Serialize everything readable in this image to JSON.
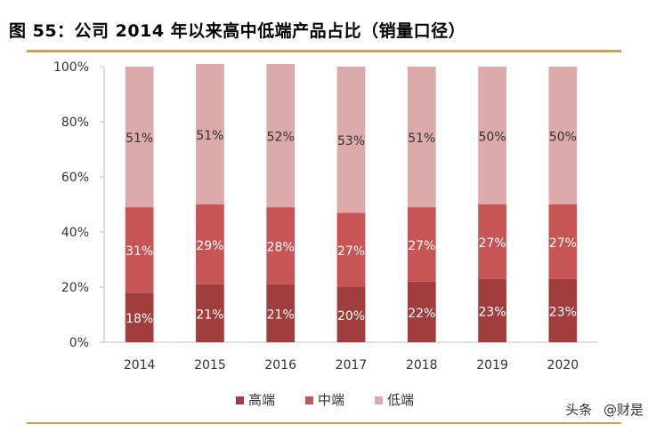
{
  "title": "图 55：公司 2014 年以来高中低端产品占比（销量口径）",
  "watermark": {
    "brand": "头条",
    "handle": "@财是"
  },
  "chart_data": {
    "type": "bar",
    "stacked": true,
    "categories": [
      "2014",
      "2015",
      "2016",
      "2017",
      "2018",
      "2019",
      "2020"
    ],
    "series": [
      {
        "name": "高端",
        "values": [
          18,
          21,
          21,
          20,
          22,
          23,
          23
        ],
        "labels": [
          "18%",
          "21%",
          "21%",
          "20%",
          "22%",
          "23%",
          "23%"
        ],
        "color": "#a23d3d",
        "label_color": "#ffffff"
      },
      {
        "name": "中端",
        "values": [
          31,
          29,
          28,
          27,
          27,
          27,
          27
        ],
        "labels": [
          "31%",
          "29%",
          "28%",
          "27%",
          "27%",
          "27%",
          "27%"
        ],
        "color": "#c85555",
        "label_color": "#ffffff"
      },
      {
        "name": "低端",
        "values": [
          51,
          51,
          52,
          53,
          51,
          50,
          50
        ],
        "labels": [
          "51%",
          "51%",
          "52%",
          "53%",
          "51%",
          "50%",
          "50%"
        ],
        "color": "#dcaaaa",
        "label_color": "#333333"
      }
    ],
    "ylim": [
      0,
      100
    ],
    "yticks": [
      "0%",
      "20%",
      "40%",
      "60%",
      "80%",
      "100%"
    ],
    "legend_position": "bottom",
    "xlabel": "",
    "ylabel": ""
  }
}
